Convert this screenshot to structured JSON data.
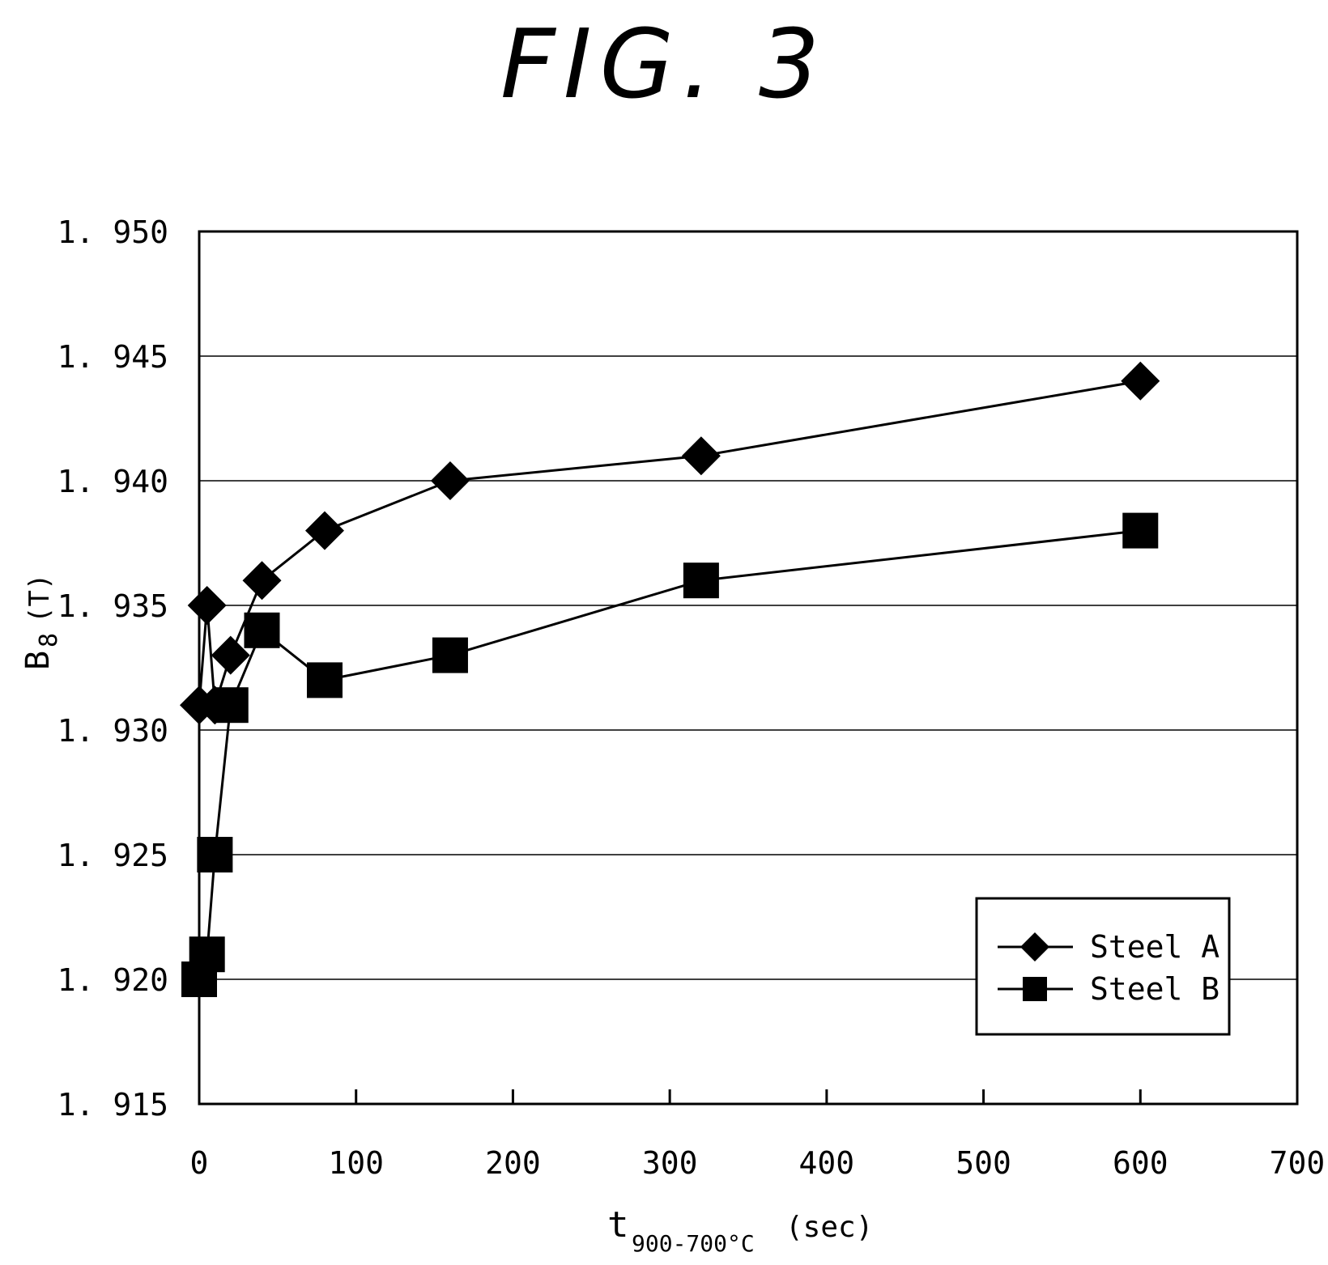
{
  "figure": {
    "title": "FIG. 3"
  },
  "chart_data": {
    "type": "line",
    "ylabel": {
      "main": "B",
      "sub": "8",
      "unit": "(T)"
    },
    "xlabel": {
      "main": "t",
      "sub": "900-700°C",
      "unit": "(sec)"
    },
    "xlim": [
      0,
      700
    ],
    "ylim": [
      1.915,
      1.95
    ],
    "xticks": [
      0,
      100,
      200,
      300,
      400,
      500,
      600,
      700
    ],
    "yticks": [
      1.915,
      1.92,
      1.925,
      1.93,
      1.935,
      1.94,
      1.945,
      1.95
    ],
    "ytick_labels": [
      "1. 915",
      "1. 920",
      "1. 925",
      "1. 930",
      "1. 935",
      "1. 940",
      "1. 945",
      "1. 950"
    ],
    "grid": "horizontal",
    "legend_position": "bottom-right",
    "series": [
      {
        "name": "Steel A",
        "marker": "diamond",
        "points": [
          [
            0,
            1.931
          ],
          [
            5,
            1.935
          ],
          [
            10,
            1.931
          ],
          [
            20,
            1.933
          ],
          [
            40,
            1.936
          ],
          [
            80,
            1.938
          ],
          [
            160,
            1.94
          ],
          [
            320,
            1.941
          ],
          [
            600,
            1.944
          ]
        ]
      },
      {
        "name": "Steel B",
        "marker": "square",
        "points": [
          [
            0,
            1.92
          ],
          [
            5,
            1.921
          ],
          [
            10,
            1.925
          ],
          [
            20,
            1.931
          ],
          [
            40,
            1.934
          ],
          [
            80,
            1.932
          ],
          [
            160,
            1.933
          ],
          [
            320,
            1.936
          ],
          [
            600,
            1.938
          ]
        ]
      }
    ]
  }
}
